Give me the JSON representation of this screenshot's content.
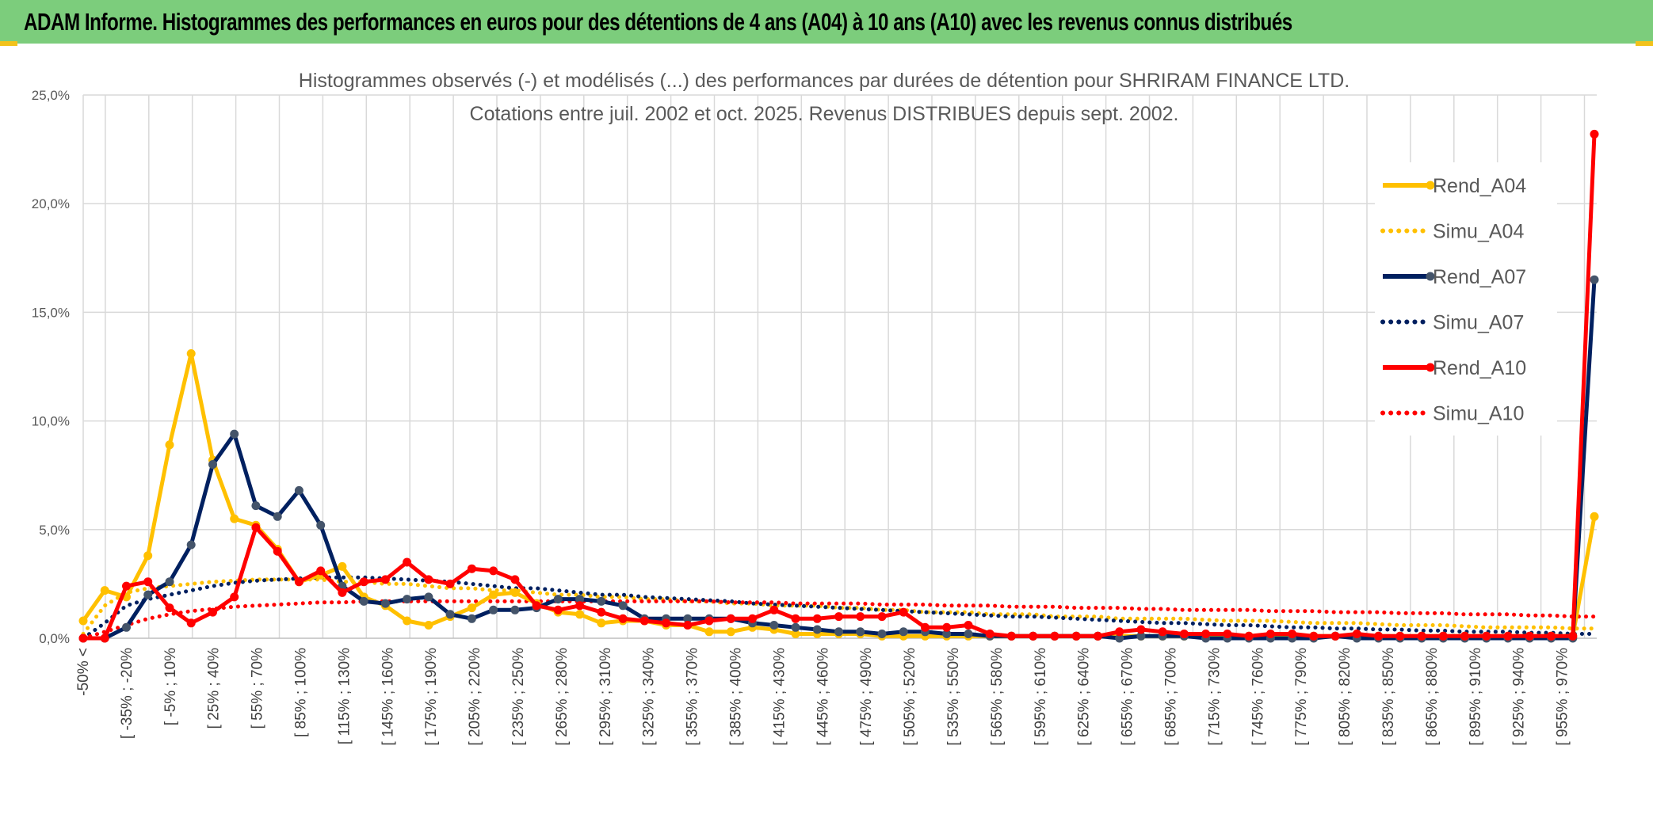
{
  "banner": {
    "title": "ADAM Informe. Histogrammes des performances en euros pour des détentions de 4 ans (A04) à 10 ans (A10) avec les revenus connus distribués",
    "color": "#7ccd7c"
  },
  "chart_data": {
    "type": "line",
    "title": "Histogrammes observés (-) et modélisés (...) des performances par durées de détention pour SHRIRAM FINANCE LTD.",
    "subtitle": "Cotations entre juil. 2002 et oct. 2025. Revenus DISTRIBUES depuis sept. 2002.",
    "xlabel": "",
    "ylabel": "",
    "ylim": [
      0,
      25
    ],
    "yticks": [
      "0,0%",
      "5,0%",
      "10,0%",
      "15,0%",
      "20,0%",
      "25,0%"
    ],
    "grid": true,
    "legend_position": "right",
    "x_labels": [
      "-50% <",
      "[ -35% ; -20%",
      "[ -5% ; 10%",
      "[ 25% ; 40%",
      "[ 55% ; 70%",
      "[ 85% ; 100%",
      "[ 115% ; 130%",
      "[ 145% ; 160%",
      "[ 175% ; 190%",
      "[ 205% ; 220%",
      "[ 235% ; 250%",
      "[ 265% ; 280%",
      "[ 295% ; 310%",
      "[ 325% ; 340%",
      "[ 355% ; 370%",
      "[ 385% ; 400%",
      "[ 415% ; 430%",
      "[ 445% ; 460%",
      "[ 475% ; 490%",
      "[ 505% ; 520%",
      "[ 535% ; 550%",
      "[ 565% ; 580%",
      "[ 595% ; 610%",
      "[ 625% ; 640%",
      "[ 655% ; 670%",
      "[ 685% ; 700%",
      "[ 715% ; 730%",
      "[ 745% ; 760%",
      "[ 775% ; 790%",
      "[ 805% ; 820%",
      "[ 835% ; 850%",
      "[ 865% ; 880%",
      "[ 895% ; 910%",
      "[ 925% ; 940%",
      "[ 955% ; 970%"
    ],
    "series": [
      {
        "name": "Rend_A04",
        "color": "#ffc000",
        "style": "solid",
        "values": [
          0.8,
          2.2,
          1.9,
          3.8,
          8.9,
          13.1,
          8.2,
          5.5,
          5.2,
          4.1,
          2.6,
          2.9,
          3.3,
          1.9,
          1.5,
          0.8,
          0.6,
          1,
          1.4,
          2,
          2.1,
          1.6,
          1.2,
          1.1,
          0.7,
          0.8,
          0.8,
          0.6,
          0.6,
          0.3,
          0.3,
          0.5,
          0.4,
          0.2,
          0.2,
          0.2,
          0.2,
          0.1,
          0.1,
          0.1,
          0.1,
          0.1,
          0.1,
          0.1,
          0.1,
          0.1,
          0.1,
          0.1,
          0.1,
          0.1,
          0.1,
          0.1,
          0.1,
          0.1,
          0.1,
          0.1,
          0.1,
          0.1,
          0.1,
          0.1,
          0.1,
          0.1,
          0.1,
          0.1,
          0.1,
          0.1,
          0.1,
          0.1,
          0.1,
          0.1,
          5.6
        ]
      },
      {
        "name": "Simu_A04",
        "color": "#ffc000",
        "style": "dotted",
        "values": [
          0.2,
          1.5,
          2.1,
          2.3,
          2.4,
          2.5,
          2.6,
          2.65,
          2.7,
          2.7,
          2.7,
          2.7,
          2.6,
          2.6,
          2.5,
          2.5,
          2.4,
          2.3,
          2.3,
          2.2,
          2.2,
          2.1,
          2,
          2,
          1.9,
          1.9,
          1.8,
          1.8,
          1.7,
          1.7,
          1.6,
          1.6,
          1.5,
          1.5,
          1.5,
          1.4,
          1.4,
          1.3,
          1.3,
          1.2,
          1.2,
          1.2,
          1.1,
          1.1,
          1.1,
          1,
          1,
          1,
          0.9,
          0.9,
          0.9,
          0.9,
          0.85,
          0.8,
          0.8,
          0.8,
          0.75,
          0.7,
          0.7,
          0.7,
          0.65,
          0.6,
          0.6,
          0.6,
          0.55,
          0.5,
          0.5,
          0.5,
          0.5,
          0.45,
          0.45
        ]
      },
      {
        "name": "Rend_A07",
        "color": "#002060",
        "style": "solid",
        "values": [
          0,
          0,
          0.5,
          2,
          2.6,
          4.3,
          8,
          9.4,
          6.1,
          5.6,
          6.8,
          5.2,
          2.4,
          1.7,
          1.6,
          1.8,
          1.9,
          1.1,
          0.9,
          1.3,
          1.3,
          1.4,
          1.8,
          1.8,
          1.7,
          1.5,
          0.9,
          0.9,
          0.9,
          0.9,
          0.9,
          0.7,
          0.6,
          0.5,
          0.4,
          0.3,
          0.3,
          0.2,
          0.3,
          0.3,
          0.2,
          0.2,
          0.1,
          0.1,
          0.1,
          0.1,
          0.1,
          0.1,
          0,
          0.1,
          0.1,
          0.1,
          0,
          0,
          0,
          0,
          0,
          0,
          0.1,
          0,
          0,
          0,
          0,
          0,
          0,
          0,
          0,
          0,
          0,
          0,
          16.5
        ]
      },
      {
        "name": "Simu_A07",
        "color": "#002060",
        "style": "dotted",
        "values": [
          0,
          0.7,
          1.5,
          1.8,
          2,
          2.2,
          2.4,
          2.55,
          2.65,
          2.7,
          2.75,
          2.8,
          2.8,
          2.8,
          2.75,
          2.7,
          2.65,
          2.6,
          2.5,
          2.4,
          2.3,
          2.3,
          2.2,
          2.1,
          2,
          2,
          1.9,
          1.85,
          1.8,
          1.75,
          1.7,
          1.6,
          1.55,
          1.5,
          1.45,
          1.4,
          1.35,
          1.3,
          1.25,
          1.2,
          1.15,
          1.1,
          1.05,
          1,
          1,
          0.95,
          0.9,
          0.85,
          0.8,
          0.75,
          0.7,
          0.7,
          0.65,
          0.6,
          0.6,
          0.55,
          0.5,
          0.5,
          0.45,
          0.45,
          0.4,
          0.4,
          0.35,
          0.35,
          0.3,
          0.3,
          0.3,
          0.25,
          0.25,
          0.2,
          0.2
        ]
      },
      {
        "name": "Rend_A10",
        "color": "#ff0000",
        "style": "solid",
        "values": [
          0,
          0,
          2.4,
          2.6,
          1.4,
          0.7,
          1.2,
          1.9,
          5.1,
          4,
          2.6,
          3.1,
          2.1,
          2.6,
          2.7,
          3.5,
          2.7,
          2.5,
          3.2,
          3.1,
          2.7,
          1.5,
          1.3,
          1.5,
          1.2,
          0.9,
          0.8,
          0.7,
          0.6,
          0.8,
          0.9,
          0.9,
          1.3,
          0.9,
          0.9,
          1,
          1,
          1,
          1.2,
          0.5,
          0.5,
          0.6,
          0.2,
          0.1,
          0.1,
          0.1,
          0.1,
          0.1,
          0.3,
          0.4,
          0.3,
          0.2,
          0.2,
          0.2,
          0.1,
          0.2,
          0.2,
          0.1,
          0.1,
          0.2,
          0.1,
          0.1,
          0.1,
          0.1,
          0.1,
          0.1,
          0.1,
          0.1,
          0.1,
          0.1,
          23.2
        ]
      },
      {
        "name": "Simu_A10",
        "color": "#ff0000",
        "style": "dotted",
        "values": [
          0,
          0.3,
          0.6,
          0.9,
          1.1,
          1.25,
          1.35,
          1.45,
          1.5,
          1.55,
          1.6,
          1.65,
          1.65,
          1.7,
          1.7,
          1.7,
          1.7,
          1.7,
          1.7,
          1.7,
          1.7,
          1.7,
          1.7,
          1.7,
          1.7,
          1.7,
          1.7,
          1.7,
          1.7,
          1.7,
          1.65,
          1.65,
          1.65,
          1.6,
          1.6,
          1.6,
          1.6,
          1.55,
          1.55,
          1.55,
          1.5,
          1.5,
          1.5,
          1.45,
          1.45,
          1.45,
          1.4,
          1.4,
          1.4,
          1.35,
          1.35,
          1.3,
          1.3,
          1.3,
          1.3,
          1.25,
          1.25,
          1.25,
          1.2,
          1.2,
          1.2,
          1.15,
          1.15,
          1.15,
          1.1,
          1.1,
          1.1,
          1.05,
          1.05,
          1.0,
          1.0
        ]
      }
    ]
  }
}
